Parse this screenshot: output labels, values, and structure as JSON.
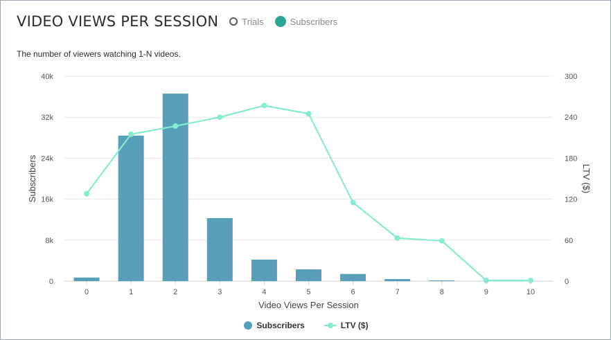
{
  "header": {
    "title": "VIDEO VIEWS PER SESSION",
    "toggles": [
      {
        "label": "Trials",
        "selected": false
      },
      {
        "label": "Subscribers",
        "selected": true
      }
    ]
  },
  "subtitle": "The number of viewers watching 1-N videos.",
  "colors": {
    "bar": "#579fb9",
    "line": "#86ecd1",
    "grid": "#e6e6e6",
    "toggle_on": "#2aa596"
  },
  "chart_data": {
    "type": "bar",
    "categories": [
      "0",
      "1",
      "2",
      "3",
      "4",
      "5",
      "6",
      "7",
      "8",
      "9",
      "10"
    ],
    "xlabel": "Video Views Per Session",
    "ylabel": "Subscribers",
    "y2label": "LTV ($)",
    "ylim": [
      0,
      40000
    ],
    "y2lim": [
      0,
      300
    ],
    "yticks": [
      "0",
      "8k",
      "16k",
      "24k",
      "32k",
      "40k"
    ],
    "y2ticks": [
      "0",
      "60",
      "120",
      "180",
      "240",
      "300"
    ],
    "grid": true,
    "legend_position": "bottom-center",
    "series": [
      {
        "name": "Subscribers",
        "kind": "bar",
        "axis": "left",
        "values": [
          700,
          28400,
          36600,
          12300,
          4200,
          2300,
          1400,
          400,
          150,
          0,
          0
        ]
      },
      {
        "name": "LTV ($)",
        "kind": "line",
        "axis": "right",
        "values": [
          128,
          215,
          227,
          240,
          257,
          245,
          115,
          63,
          59,
          1,
          1
        ]
      }
    ]
  }
}
